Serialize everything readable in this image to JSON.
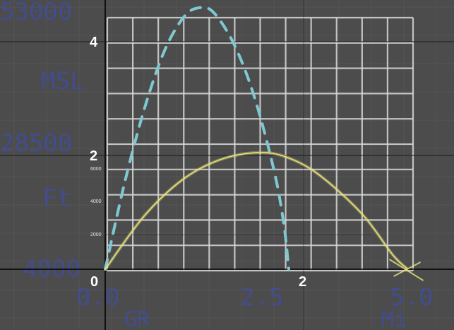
{
  "chart_data": {
    "type": "line",
    "background_photo_text": {
      "left_labels": [
        "53000",
        "MSL",
        "28500",
        "Ft",
        "4000"
      ],
      "bottom_labels": [
        "0.0",
        "2.5",
        "5.0"
      ],
      "bottom_units": [
        "GR",
        "Mi"
      ]
    },
    "overlay_axes": {
      "x_ticks": [
        "0",
        "2"
      ],
      "y_ticks": [
        "2",
        "4"
      ],
      "x_range": [
        0,
        3.4
      ],
      "y_range": [
        -0.5,
        5.2
      ]
    },
    "inner_axis": {
      "y_ticks": [
        "2000",
        "4000",
        "6000"
      ]
    },
    "series": [
      {
        "style": "dashed",
        "color": "#7fc8d2",
        "x": [
          0.0,
          0.2,
          0.4,
          0.6,
          0.8,
          0.96,
          1.1,
          1.3,
          1.5,
          1.7,
          1.8,
          1.85
        ],
        "y": [
          0.0,
          1.55,
          2.85,
          3.85,
          4.45,
          4.6,
          4.5,
          3.95,
          3.05,
          1.75,
          0.8,
          0.0
        ]
      },
      {
        "style": "solid",
        "color": "#e8e27a",
        "x": [
          0.0,
          0.4,
          0.8,
          1.2,
          1.6,
          1.9,
          2.2,
          2.6,
          2.9,
          3.05
        ],
        "y": [
          0.0,
          0.95,
          1.6,
          1.95,
          2.05,
          1.92,
          1.6,
          0.95,
          0.25,
          0.0
        ]
      }
    ],
    "grid": true
  }
}
